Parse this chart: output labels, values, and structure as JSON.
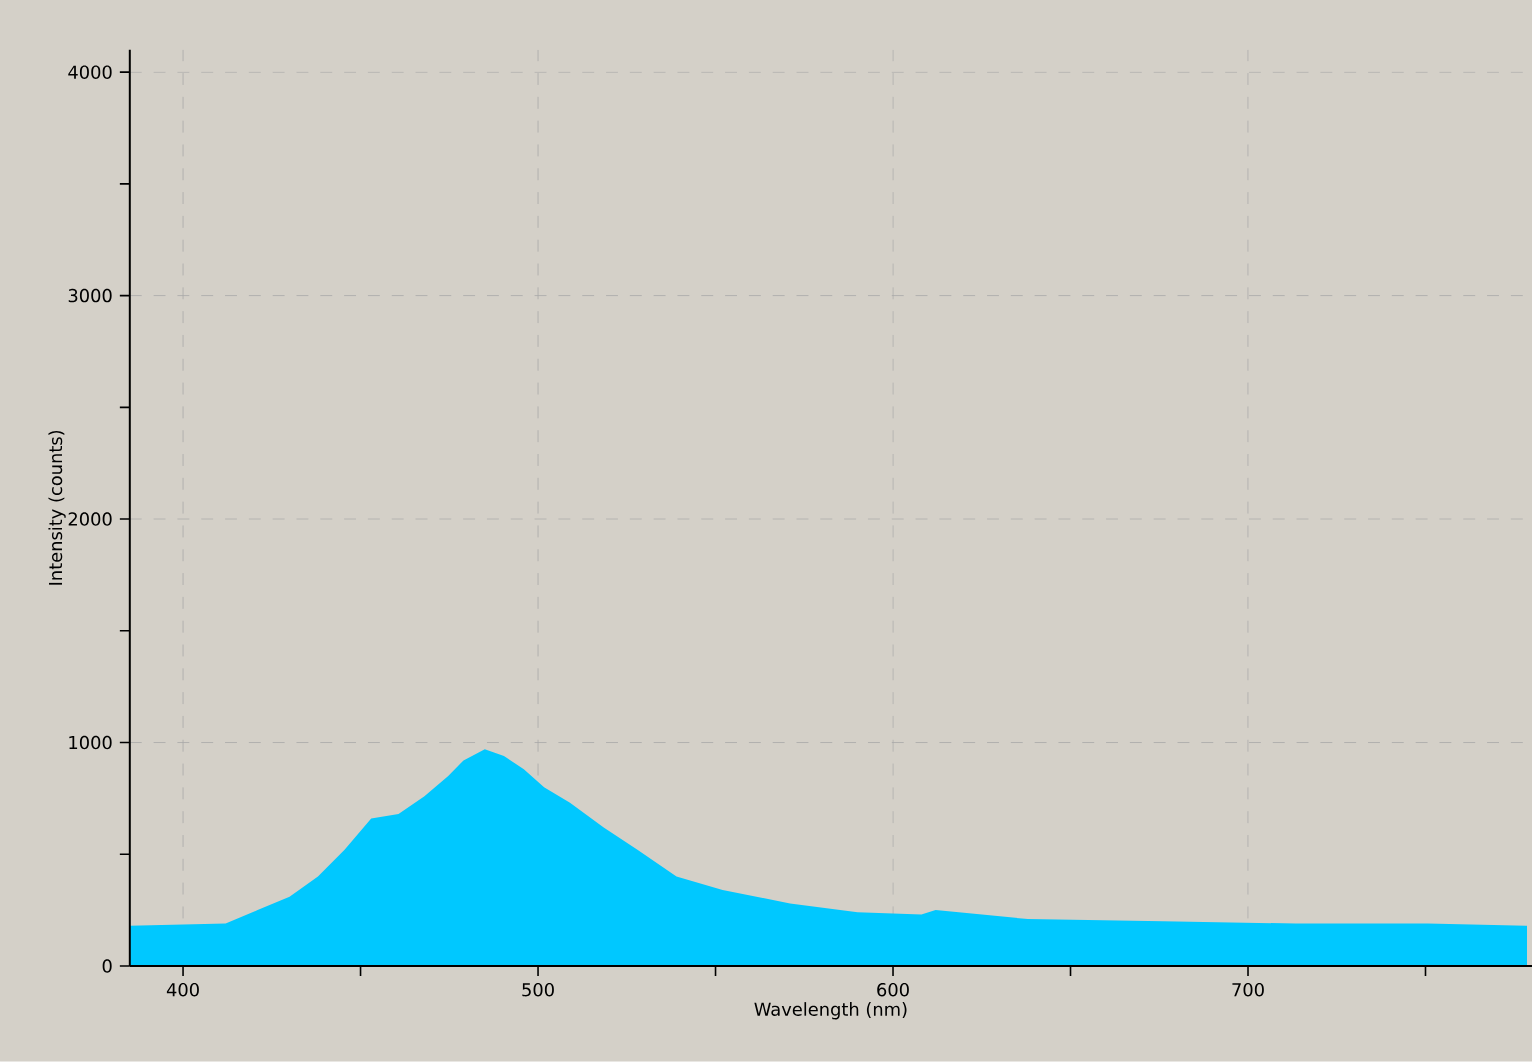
{
  "chart_data": {
    "type": "area",
    "xlabel": "Wavelength (nm)",
    "ylabel": "Intensity (counts)",
    "xlim": [
      385,
      780
    ],
    "ylim": [
      0,
      4100
    ],
    "xticks": [
      400,
      {
        "value": 450,
        "label": null
      },
      500,
      {
        "value": 550,
        "label": null
      },
      600,
      {
        "value": 650,
        "label": null
      },
      700,
      {
        "value": 750,
        "label": null
      }
    ],
    "yticks": [
      0,
      {
        "value": 500,
        "label": null
      },
      1000,
      {
        "value": 1500,
        "label": null
      },
      2000,
      {
        "value": 2500,
        "label": null
      },
      3000,
      {
        "value": 3500,
        "label": null
      },
      4000
    ],
    "grid": true,
    "x": [
      385,
      412,
      421,
      430,
      438,
      445.5,
      453,
      460.7,
      468,
      474.7,
      479,
      485,
      490.4,
      496,
      501.7,
      509,
      518.5,
      528,
      539,
      552,
      571,
      590,
      608,
      612,
      638,
      676,
      713.5,
      750.6,
      778.6
    ],
    "values": [
      180,
      190,
      250,
      310,
      400,
      520,
      660,
      680,
      760,
      850,
      920,
      970,
      940,
      880,
      800,
      730,
      620,
      520,
      400,
      340,
      280,
      240,
      230,
      250,
      210,
      200,
      190,
      190,
      180
    ],
    "color": "#00c8ff"
  }
}
